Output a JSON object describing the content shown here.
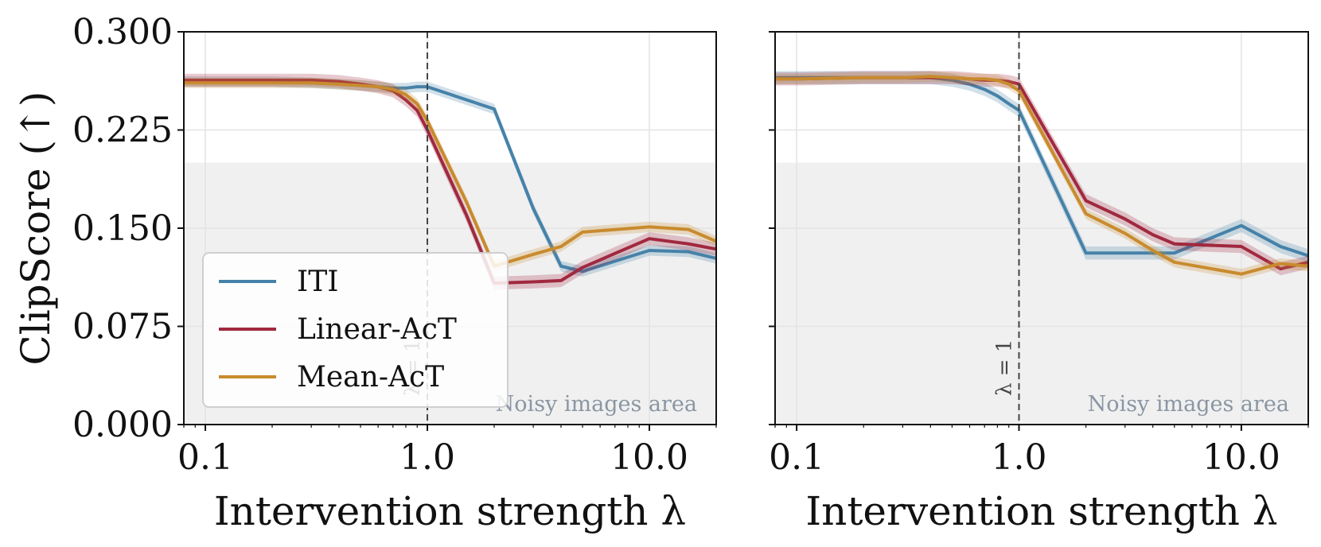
{
  "chart_data": [
    {
      "type": "line",
      "xscale": "log",
      "xlim": [
        0.08,
        20
      ],
      "ylim": [
        0,
        0.3
      ],
      "xticks": [
        0.1,
        1.0,
        10.0
      ],
      "xtick_labels": [
        "0.1",
        "1.0",
        "10.0"
      ],
      "yticks": [
        0,
        0.075,
        0.15,
        0.225,
        0.3
      ],
      "ytick_labels": [
        "0.000",
        "0.075",
        "0.150",
        "0.225",
        "0.300"
      ],
      "xlabel": "Intervention strength λ",
      "ylabel": "ClipScore (↑)",
      "grid": true,
      "noisy_region": {
        "y_from": 0,
        "y_to": 0.2,
        "label": "Noisy images area"
      },
      "vline": {
        "x": 1.0,
        "label": "λ = 1"
      },
      "legend": {
        "placement": "lower-left",
        "entries": [
          "ITI",
          "Linear-AcT",
          "Mean-AcT"
        ]
      },
      "series": [
        {
          "name": "ITI",
          "color": "#4682a9",
          "x": [
            0.08,
            0.1,
            0.2,
            0.3,
            0.4,
            0.5,
            0.6,
            0.7,
            0.8,
            0.9,
            1.0,
            2.0,
            3.0,
            4.0,
            5.0,
            10.0,
            15.0,
            20.0
          ],
          "y": [
            0.262,
            0.262,
            0.262,
            0.261,
            0.26,
            0.259,
            0.258,
            0.257,
            0.257,
            0.258,
            0.258,
            0.241,
            0.165,
            0.121,
            0.117,
            0.133,
            0.132,
            0.127
          ],
          "band": 0.004
        },
        {
          "name": "Linear-AcT",
          "color": "#a0293f",
          "x": [
            0.08,
            0.1,
            0.2,
            0.3,
            0.4,
            0.5,
            0.6,
            0.7,
            0.8,
            0.9,
            1.0,
            1.5,
            2.0,
            3.0,
            4.0,
            5.0,
            10.0,
            15.0,
            20.0
          ],
          "y": [
            0.263,
            0.263,
            0.263,
            0.263,
            0.262,
            0.26,
            0.258,
            0.255,
            0.248,
            0.24,
            0.225,
            0.16,
            0.108,
            0.109,
            0.11,
            0.12,
            0.142,
            0.138,
            0.134
          ],
          "band": 0.005
        },
        {
          "name": "Mean-AcT",
          "color": "#c88b2e",
          "x": [
            0.08,
            0.1,
            0.2,
            0.3,
            0.4,
            0.5,
            0.6,
            0.7,
            0.8,
            0.9,
            1.0,
            1.5,
            2.0,
            3.0,
            4.0,
            5.0,
            10.0,
            15.0,
            20.0
          ],
          "y": [
            0.261,
            0.261,
            0.261,
            0.261,
            0.26,
            0.259,
            0.258,
            0.256,
            0.252,
            0.245,
            0.232,
            0.17,
            0.121,
            0.13,
            0.136,
            0.147,
            0.151,
            0.149,
            0.14
          ],
          "band": 0.004
        }
      ]
    },
    {
      "type": "line",
      "xscale": "log",
      "xlim": [
        0.08,
        20
      ],
      "ylim": [
        0,
        0.3
      ],
      "xticks": [
        0.1,
        1.0,
        10.0
      ],
      "xtick_labels": [
        "0.1",
        "1.0",
        "10.0"
      ],
      "yticks": [
        0,
        0.075,
        0.15,
        0.225,
        0.3
      ],
      "ytick_labels": [
        "",
        "",
        "",
        "",
        ""
      ],
      "xlabel": "Intervention strength λ",
      "ylabel": "",
      "grid": true,
      "noisy_region": {
        "y_from": 0,
        "y_to": 0.2,
        "label": "Noisy images area"
      },
      "vline": {
        "x": 1.0,
        "label": "λ = 1"
      },
      "series": [
        {
          "name": "ITI",
          "color": "#4682a9",
          "x": [
            0.08,
            0.1,
            0.2,
            0.3,
            0.4,
            0.5,
            0.6,
            0.7,
            0.8,
            0.9,
            1.0,
            2.0,
            3.0,
            4.0,
            5.0,
            10.0,
            15.0,
            20.0
          ],
          "y": [
            0.265,
            0.265,
            0.265,
            0.265,
            0.265,
            0.263,
            0.26,
            0.256,
            0.251,
            0.245,
            0.24,
            0.131,
            0.131,
            0.131,
            0.131,
            0.152,
            0.136,
            0.129
          ],
          "band": 0.005
        },
        {
          "name": "Linear-AcT",
          "color": "#a0293f",
          "x": [
            0.08,
            0.1,
            0.2,
            0.3,
            0.4,
            0.5,
            0.6,
            0.7,
            0.8,
            0.9,
            1.0,
            2.0,
            3.0,
            4.0,
            5.0,
            10.0,
            15.0,
            20.0
          ],
          "y": [
            0.264,
            0.264,
            0.265,
            0.265,
            0.265,
            0.265,
            0.264,
            0.263,
            0.263,
            0.262,
            0.26,
            0.171,
            0.157,
            0.145,
            0.138,
            0.136,
            0.119,
            0.124
          ],
          "band": 0.005
        },
        {
          "name": "Mean-AcT",
          "color": "#c88b2e",
          "x": [
            0.08,
            0.1,
            0.2,
            0.3,
            0.4,
            0.5,
            0.6,
            0.7,
            0.8,
            0.9,
            1.0,
            2.0,
            3.0,
            4.0,
            5.0,
            10.0,
            15.0,
            20.0
          ],
          "y": [
            0.264,
            0.264,
            0.265,
            0.265,
            0.266,
            0.265,
            0.264,
            0.264,
            0.263,
            0.26,
            0.255,
            0.161,
            0.146,
            0.133,
            0.124,
            0.115,
            0.123,
            0.121
          ],
          "band": 0.004
        }
      ]
    }
  ]
}
